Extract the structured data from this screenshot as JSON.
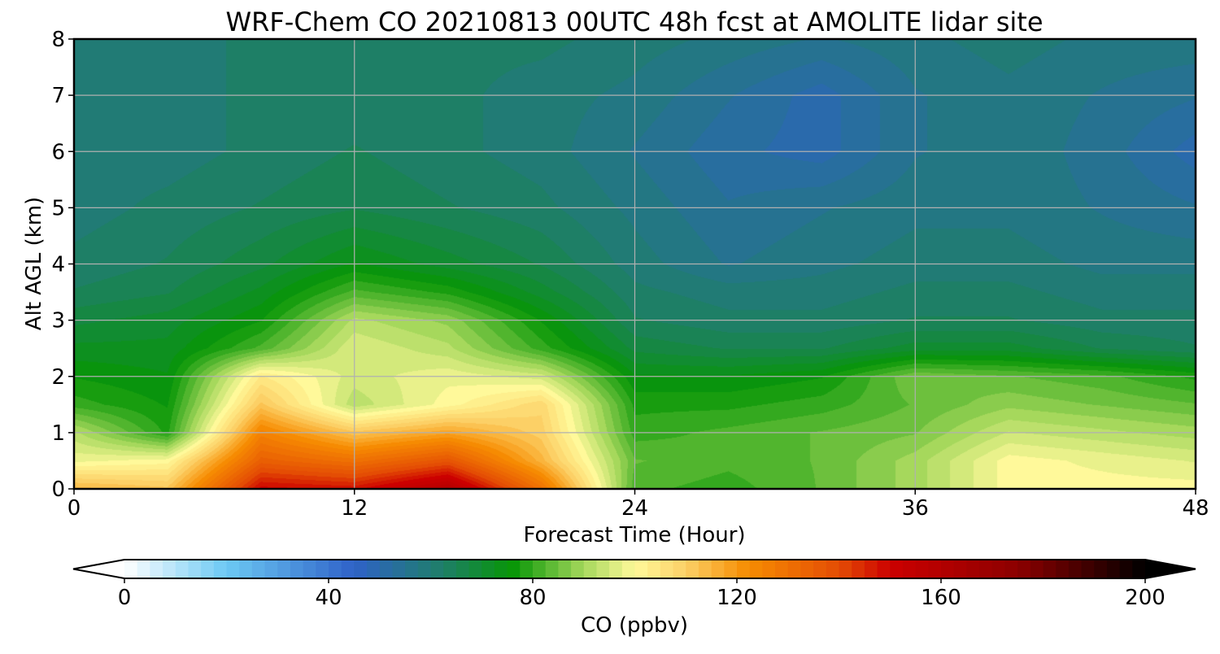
{
  "chart_data": {
    "type": "heatmap",
    "title": "WRF-Chem CO  20210813 00UTC 48h fcst at AMOLITE lidar site",
    "xlabel": "Forecast Time (Hour)",
    "ylabel": "Alt AGL (km)",
    "xlim": [
      0,
      48
    ],
    "ylim": [
      0,
      8
    ],
    "xticks": [
      0,
      12,
      24,
      36,
      48
    ],
    "yticks": [
      0,
      1,
      2,
      3,
      4,
      5,
      6,
      7,
      8
    ],
    "grid": true,
    "z_units": "ppbv",
    "x": [
      0,
      4,
      8,
      12,
      16,
      20,
      24,
      28,
      32,
      36,
      40,
      44,
      48
    ],
    "y": [
      0,
      0.5,
      1,
      1.5,
      2,
      2.5,
      3,
      3.5,
      4,
      5,
      6,
      7,
      8
    ],
    "z": [
      [
        115,
        112,
        150,
        148,
        160,
        130,
        82,
        80,
        84,
        90,
        100,
        100,
        100
      ],
      [
        98,
        100,
        135,
        130,
        138,
        115,
        84,
        82,
        84,
        90,
        100,
        98,
        96
      ],
      [
        92,
        78,
        125,
        112,
        118,
        110,
        80,
        82,
        84,
        86,
        94,
        92,
        90
      ],
      [
        80,
        76,
        112,
        92,
        100,
        108,
        78,
        78,
        80,
        84,
        88,
        86,
        84
      ],
      [
        76,
        74,
        104,
        95,
        98,
        95,
        74,
        74,
        76,
        86,
        84,
        82,
        78
      ],
      [
        72,
        72,
        82,
        96,
        92,
        80,
        68,
        66,
        66,
        70,
        70,
        66,
        64
      ],
      [
        68,
        70,
        76,
        92,
        88,
        76,
        64,
        62,
        62,
        64,
        64,
        62,
        62
      ],
      [
        64,
        66,
        72,
        82,
        78,
        70,
        62,
        60,
        60,
        62,
        62,
        60,
        60
      ],
      [
        62,
        64,
        68,
        74,
        70,
        66,
        60,
        56,
        58,
        60,
        60,
        58,
        58
      ],
      [
        60,
        62,
        64,
        66,
        64,
        62,
        58,
        54,
        56,
        58,
        58,
        56,
        54
      ],
      [
        60,
        60,
        62,
        64,
        62,
        60,
        56,
        52,
        50,
        56,
        58,
        55,
        50
      ],
      [
        60,
        60,
        62,
        62,
        62,
        60,
        58,
        54,
        50,
        56,
        58,
        56,
        54
      ],
      [
        60,
        60,
        62,
        62,
        62,
        62,
        60,
        58,
        56,
        58,
        60,
        58,
        58
      ]
    ],
    "colorbar": {
      "label": "CO  (ppbv)",
      "min": 0,
      "max": 200,
      "ticks": [
        0,
        40,
        80,
        120,
        160,
        200
      ],
      "extend": "both",
      "stops": [
        {
          "v": 0,
          "c": "#ffffff"
        },
        {
          "v": 20,
          "c": "#6cc9f4"
        },
        {
          "v": 45,
          "c": "#2f62c8"
        },
        {
          "v": 62,
          "c": "#1f7e6a"
        },
        {
          "v": 76,
          "c": "#079606"
        },
        {
          "v": 90,
          "c": "#a6d85c"
        },
        {
          "v": 100,
          "c": "#fff99a"
        },
        {
          "v": 110,
          "c": "#fcd066"
        },
        {
          "v": 122,
          "c": "#f78d02"
        },
        {
          "v": 140,
          "c": "#e44d04"
        },
        {
          "v": 150,
          "c": "#cc0000"
        },
        {
          "v": 175,
          "c": "#8c0000"
        },
        {
          "v": 200,
          "c": "#000000"
        }
      ]
    }
  }
}
